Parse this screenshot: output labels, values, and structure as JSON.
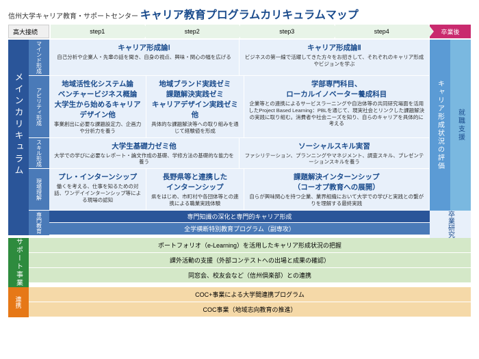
{
  "header": {
    "subtitle": "信州大学キャリア教育・サポートセンター",
    "title": "キャリア教育プログラムカリキュラムマップ"
  },
  "steps": {
    "left": "高大接続",
    "items": [
      "step1",
      "step2",
      "step3",
      "step4"
    ],
    "grad": "卒業後"
  },
  "leftLabel": "メインカリキュラム",
  "rows": [
    {
      "label": "マインド形成",
      "cells": [
        {
          "title": "キャリア形成論Ⅰ",
          "desc": "自己分析や企業人・先輩の話を聞き、自身の視点、興味・関心の幅を広げる",
          "span": 1
        },
        {
          "title": "キャリア形成論Ⅱ",
          "desc": "ビジネスの第一線で活躍してきた方々をお招きして、それぞれのキャリア形成やビジョンを学ぶ",
          "span": 1
        },
        {
          "title": "",
          "desc": "",
          "span": 1,
          "merge": true
        },
        {
          "title": "",
          "desc": "",
          "span": 1,
          "merge": true
        }
      ]
    },
    {
      "label": "アビリティ形成",
      "cells": [
        {
          "title": "地域活性化システム論\nベンチャービジネス概論\n大学生から始めるキャリアデザイン他",
          "desc": "事業創出に必要な課題設定力、企画力や分析力を養う",
          "span": 1
        },
        {
          "title": "地域ブランド実践ゼミ\n課題解決実践ゼミ\nキャリアデザイン実践ゼミ他",
          "desc": "具体的な課題解決等への取り組みを通じて経験値を形成",
          "span": 1
        },
        {
          "title": "学部専門科目、\nローカルイノベーター養成科目",
          "desc": "企業等との連携によるサービスラーニングや自治体等の共同研究場面を活用したProject Based Learning：PBLを通じて、現実社会とリンクした課題解決の実践に取り組む。消費者や社会ニーズを知り、自らのキャリアを具体的に考える",
          "span": 2
        }
      ]
    },
    {
      "label": "スキル形成",
      "cells": [
        {
          "title": "大学生基礎力ゼミ他",
          "desc": "大学での学びに必要なレポート・論文作成の基礎、学修方法の基礎的な能力を養う",
          "span": 1
        },
        {
          "title": "ソーシャルスキル実習",
          "desc": "ファシリテーション、プランニングやマネジメント、調査スキル、プレゼンテーションスキルを養う",
          "span": 1
        },
        {
          "title": "",
          "desc": "",
          "span": 2,
          "merge": true
        }
      ]
    },
    {
      "label": "現場理解",
      "cells": [
        {
          "title": "プレ・インターンシップ",
          "desc": "働くを考える、仕事を知るための対話、ワンデイインターンシップ等による現場の認知",
          "span": 1
        },
        {
          "title": "長野県等と連携した\nインターンシップ",
          "desc": "県をはじめ、市町村や各団体等との連携による職業実践体験",
          "span": 1
        },
        {
          "title": "課題解決インターンシップ\n（コーオプ教育への展開）",
          "desc": "自らが興味関心を持つ企業、業界組織において大学での学びと実践との繋がりを理解する最終実践",
          "span": 2
        }
      ]
    }
  ],
  "rightCols": {
    "col1": "キャリア形成状況の評価",
    "col2": "就職支援"
  },
  "senmon": {
    "label": "専門教育",
    "band1": "専門知識の深化と専門的キャリア形成",
    "band2": "全学横断特別教育プログラム（副専攻）"
  },
  "rightExtra": "卒業研究",
  "support": {
    "label": "サポート事業",
    "rows": [
      "ポートフォリオ（e-Learning）を活用したキャリア形成状況の把握",
      "課外活動の支援（外部コンテストへの出場と成果の確認）",
      "同窓会、校友会など（信州倶楽部）との連携"
    ]
  },
  "coc": {
    "label": "連携",
    "rows": [
      "COC+事業による大学間連携プログラム",
      "COC事業（地域志向教育の推進）"
    ]
  },
  "colors": {
    "primary": "#2a5599",
    "primaryLight": "#4a7ab8",
    "cellBg": "#e8f0fa",
    "green": "#2e8b3e",
    "greenLight": "#d4e8c8",
    "orange": "#e67817",
    "orangeLight": "#f5d9a8",
    "pink": "#c92a6e",
    "stepBg": "#e8f4e8"
  }
}
